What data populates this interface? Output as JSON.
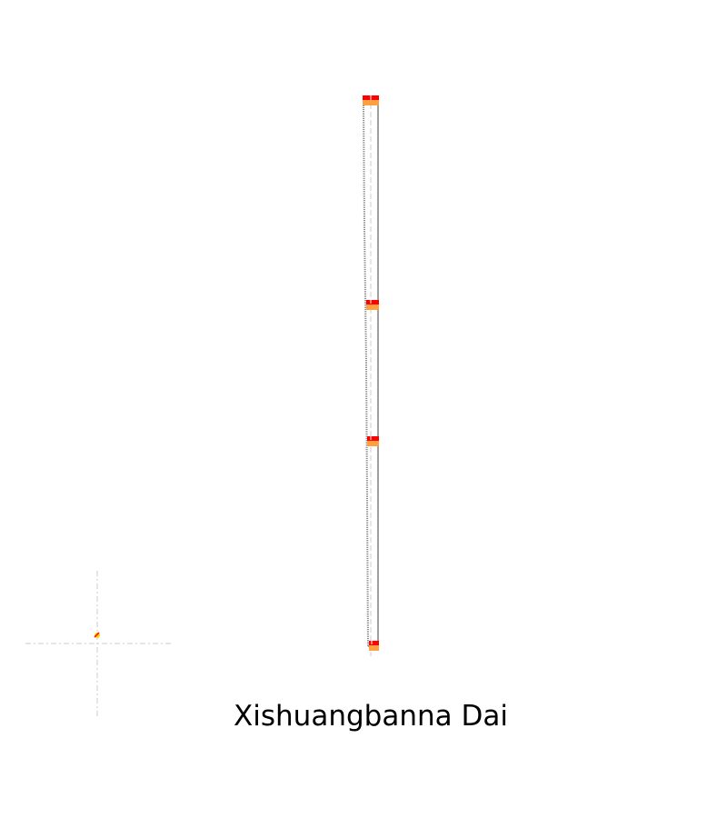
{
  "caption": {
    "text": "Xishuangbanna Dai"
  },
  "glyph_preview": {
    "outline_color": "#808080",
    "contour_color": "#888888",
    "guide_color": "#cccccc",
    "point_marker_color": "#ff0000",
    "point_marker_fill": "#ffa040",
    "origin_marker_color": "#ffd700"
  }
}
